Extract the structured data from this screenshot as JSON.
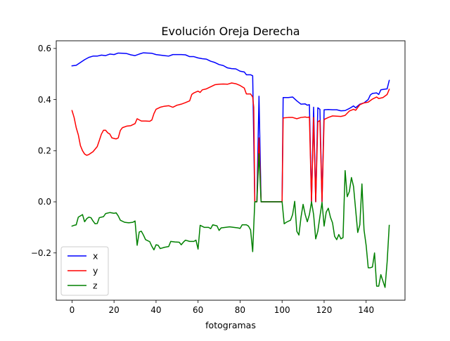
{
  "chart_data": {
    "type": "line",
    "title": "Evolución Oreja Derecha",
    "xlabel": "fotogramas",
    "ylabel": "",
    "xlim": [
      -7.5,
      158.5
    ],
    "ylim": [
      -0.385,
      0.63
    ],
    "x_ticks": [
      0,
      20,
      40,
      60,
      80,
      100,
      120,
      140
    ],
    "y_ticks": [
      -0.2,
      0.0,
      0.2,
      0.4,
      0.6
    ],
    "x_tick_labels": [
      "0",
      "20",
      "40",
      "60",
      "80",
      "100",
      "120",
      "140"
    ],
    "y_tick_labels": [
      "−0.2",
      "0.0",
      "0.2",
      "0.4",
      "0.6"
    ],
    "grid": false,
    "legend_position": "lower-left",
    "series": [
      {
        "name": "x",
        "color": "#0000ff",
        "points": [
          [
            0,
            0.532
          ],
          [
            2,
            0.534
          ],
          [
            4,
            0.545
          ],
          [
            6,
            0.556
          ],
          [
            8,
            0.565
          ],
          [
            10,
            0.57
          ],
          [
            12,
            0.57
          ],
          [
            14,
            0.574
          ],
          [
            16,
            0.572
          ],
          [
            18,
            0.578
          ],
          [
            20,
            0.576
          ],
          [
            22,
            0.582
          ],
          [
            24,
            0.581
          ],
          [
            26,
            0.58
          ],
          [
            28,
            0.575
          ],
          [
            30,
            0.572
          ],
          [
            32,
            0.578
          ],
          [
            34,
            0.583
          ],
          [
            36,
            0.582
          ],
          [
            38,
            0.581
          ],
          [
            40,
            0.576
          ],
          [
            42,
            0.574
          ],
          [
            44,
            0.572
          ],
          [
            46,
            0.57
          ],
          [
            48,
            0.576
          ],
          [
            50,
            0.576
          ],
          [
            52,
            0.576
          ],
          [
            54,
            0.575
          ],
          [
            56,
            0.568
          ],
          [
            58,
            0.568
          ],
          [
            60,
            0.563
          ],
          [
            62,
            0.56
          ],
          [
            64,
            0.558
          ],
          [
            66,
            0.55
          ],
          [
            68,
            0.545
          ],
          [
            70,
            0.537
          ],
          [
            72,
            0.533
          ],
          [
            74,
            0.524
          ],
          [
            76,
            0.521
          ],
          [
            78,
            0.52
          ],
          [
            80,
            0.511
          ],
          [
            82,
            0.508
          ],
          [
            83,
            0.497
          ],
          [
            85,
            0.497
          ],
          [
            86,
            0.493
          ],
          [
            87,
            0.0
          ],
          [
            88,
            0.0
          ],
          [
            89,
            0.413
          ],
          [
            90,
            0.0
          ],
          [
            92,
            0.0
          ],
          [
            94,
            0.0
          ],
          [
            96,
            0.0
          ],
          [
            98,
            0.0
          ],
          [
            100,
            0.0
          ],
          [
            100.5,
            0.408
          ],
          [
            103,
            0.408
          ],
          [
            105,
            0.41
          ],
          [
            107,
            0.395
          ],
          [
            109,
            0.382
          ],
          [
            111,
            0.383
          ],
          [
            112,
            0.378
          ],
          [
            113,
            0.38
          ],
          [
            114,
            0.0
          ],
          [
            115,
            0.37
          ],
          [
            116,
            0.0
          ],
          [
            117,
            0.368
          ],
          [
            118,
            0.362
          ],
          [
            119,
            0.0
          ],
          [
            120,
            0.36
          ],
          [
            122,
            0.361
          ],
          [
            124,
            0.36
          ],
          [
            126,
            0.36
          ],
          [
            128,
            0.356
          ],
          [
            130,
            0.357
          ],
          [
            132,
            0.365
          ],
          [
            134,
            0.375
          ],
          [
            135,
            0.368
          ],
          [
            137,
            0.382
          ],
          [
            139,
            0.387
          ],
          [
            141,
            0.4
          ],
          [
            142,
            0.418
          ],
          [
            143,
            0.424
          ],
          [
            145,
            0.426
          ],
          [
            146,
            0.42
          ],
          [
            147,
            0.438
          ],
          [
            149,
            0.441
          ],
          [
            150,
            0.442
          ],
          [
            151,
            0.475
          ]
        ]
      },
      {
        "name": "y",
        "color": "#ff0000",
        "points": [
          [
            0,
            0.357
          ],
          [
            1,
            0.33
          ],
          [
            2,
            0.29
          ],
          [
            3,
            0.262
          ],
          [
            4,
            0.22
          ],
          [
            5,
            0.2
          ],
          [
            6,
            0.187
          ],
          [
            7,
            0.182
          ],
          [
            8,
            0.185
          ],
          [
            10,
            0.196
          ],
          [
            12,
            0.216
          ],
          [
            13,
            0.24
          ],
          [
            14,
            0.265
          ],
          [
            15,
            0.28
          ],
          [
            16,
            0.28
          ],
          [
            17,
            0.27
          ],
          [
            18,
            0.265
          ],
          [
            19,
            0.25
          ],
          [
            21,
            0.246
          ],
          [
            22,
            0.25
          ],
          [
            23,
            0.279
          ],
          [
            24,
            0.29
          ],
          [
            26,
            0.296
          ],
          [
            28,
            0.298
          ],
          [
            30,
            0.306
          ],
          [
            31,
            0.325
          ],
          [
            33,
            0.316
          ],
          [
            35,
            0.316
          ],
          [
            37,
            0.315
          ],
          [
            38,
            0.32
          ],
          [
            39,
            0.345
          ],
          [
            40,
            0.362
          ],
          [
            42,
            0.37
          ],
          [
            44,
            0.374
          ],
          [
            46,
            0.376
          ],
          [
            48,
            0.37
          ],
          [
            50,
            0.378
          ],
          [
            52,
            0.382
          ],
          [
            54,
            0.388
          ],
          [
            56,
            0.395
          ],
          [
            57,
            0.42
          ],
          [
            58,
            0.426
          ],
          [
            60,
            0.433
          ],
          [
            61,
            0.428
          ],
          [
            62,
            0.438
          ],
          [
            64,
            0.442
          ],
          [
            66,
            0.45
          ],
          [
            68,
            0.458
          ],
          [
            70,
            0.46
          ],
          [
            72,
            0.461
          ],
          [
            74,
            0.46
          ],
          [
            76,
            0.465
          ],
          [
            78,
            0.462
          ],
          [
            80,
            0.455
          ],
          [
            82,
            0.445
          ],
          [
            83,
            0.422
          ],
          [
            85,
            0.422
          ],
          [
            86,
            0.41
          ],
          [
            86.5,
            0.37
          ],
          [
            87,
            0.0
          ],
          [
            88,
            0.0
          ],
          [
            89,
            0.25
          ],
          [
            90,
            0.0
          ],
          [
            92,
            0.0
          ],
          [
            94,
            0.0
          ],
          [
            96,
            0.0
          ],
          [
            98,
            0.0
          ],
          [
            100,
            0.0
          ],
          [
            100.5,
            0.328
          ],
          [
            103,
            0.33
          ],
          [
            105,
            0.33
          ],
          [
            107,
            0.325
          ],
          [
            109,
            0.33
          ],
          [
            111,
            0.332
          ],
          [
            112,
            0.33
          ],
          [
            113,
            0.332
          ],
          [
            114,
            0.0
          ],
          [
            115,
            0.33
          ],
          [
            116,
            0.0
          ],
          [
            117,
            0.313
          ],
          [
            118,
            0.318
          ],
          [
            119,
            0.0
          ],
          [
            120,
            0.322
          ],
          [
            122,
            0.33
          ],
          [
            124,
            0.336
          ],
          [
            126,
            0.335
          ],
          [
            128,
            0.334
          ],
          [
            130,
            0.338
          ],
          [
            132,
            0.355
          ],
          [
            134,
            0.362
          ],
          [
            135,
            0.358
          ],
          [
            137,
            0.38
          ],
          [
            139,
            0.387
          ],
          [
            141,
            0.39
          ],
          [
            143,
            0.402
          ],
          [
            145,
            0.41
          ],
          [
            146,
            0.404
          ],
          [
            148,
            0.408
          ],
          [
            150,
            0.42
          ],
          [
            151,
            0.44
          ]
        ]
      },
      {
        "name": "z",
        "color": "#008000",
        "points": [
          [
            0,
            -0.095
          ],
          [
            1,
            -0.092
          ],
          [
            2,
            -0.09
          ],
          [
            3,
            -0.06
          ],
          [
            5,
            -0.05
          ],
          [
            6,
            -0.078
          ],
          [
            7,
            -0.066
          ],
          [
            8,
            -0.06
          ],
          [
            9,
            -0.062
          ],
          [
            10,
            -0.075
          ],
          [
            11,
            -0.086
          ],
          [
            12,
            -0.085
          ],
          [
            13,
            -0.062
          ],
          [
            15,
            -0.058
          ],
          [
            16,
            -0.046
          ],
          [
            18,
            -0.042
          ],
          [
            20,
            -0.045
          ],
          [
            21,
            -0.043
          ],
          [
            22,
            -0.055
          ],
          [
            23,
            -0.072
          ],
          [
            25,
            -0.08
          ],
          [
            27,
            -0.082
          ],
          [
            29,
            -0.08
          ],
          [
            30,
            -0.075
          ],
          [
            31,
            -0.17
          ],
          [
            32,
            -0.118
          ],
          [
            33,
            -0.115
          ],
          [
            34,
            -0.13
          ],
          [
            35,
            -0.148
          ],
          [
            37,
            -0.156
          ],
          [
            38,
            -0.174
          ],
          [
            39,
            -0.188
          ],
          [
            40,
            -0.168
          ],
          [
            41,
            -0.17
          ],
          [
            42,
            -0.183
          ],
          [
            44,
            -0.178
          ],
          [
            46,
            -0.175
          ],
          [
            47,
            -0.155
          ],
          [
            49,
            -0.157
          ],
          [
            51,
            -0.158
          ],
          [
            52,
            -0.168
          ],
          [
            53,
            -0.158
          ],
          [
            54,
            -0.15
          ],
          [
            56,
            -0.155
          ],
          [
            58,
            -0.155
          ],
          [
            59,
            -0.15
          ],
          [
            60,
            -0.185
          ],
          [
            61,
            -0.092
          ],
          [
            63,
            -0.1
          ],
          [
            65,
            -0.1
          ],
          [
            66,
            -0.105
          ],
          [
            67,
            -0.09
          ],
          [
            69,
            -0.094
          ],
          [
            70,
            -0.112
          ],
          [
            71,
            -0.102
          ],
          [
            73,
            -0.1
          ],
          [
            75,
            -0.098
          ],
          [
            77,
            -0.1
          ],
          [
            79,
            -0.102
          ],
          [
            80,
            -0.104
          ],
          [
            81,
            -0.09
          ],
          [
            83,
            -0.09
          ],
          [
            84,
            -0.095
          ],
          [
            85,
            -0.11
          ],
          [
            86,
            -0.195
          ],
          [
            87,
            0.0
          ],
          [
            88,
            0.0
          ],
          [
            89,
            0.188
          ],
          [
            90,
            0.0
          ],
          [
            92,
            0.0
          ],
          [
            94,
            0.0
          ],
          [
            96,
            0.0
          ],
          [
            98,
            0.0
          ],
          [
            100,
            0.0
          ],
          [
            101,
            -0.086
          ],
          [
            102,
            -0.08
          ],
          [
            104,
            -0.072
          ],
          [
            105,
            -0.05
          ],
          [
            106,
            0.002
          ],
          [
            107,
            -0.115
          ],
          [
            108,
            -0.13
          ],
          [
            109,
            -0.06
          ],
          [
            110,
            -0.01
          ],
          [
            111,
            -0.05
          ],
          [
            112,
            -0.078
          ],
          [
            113,
            -0.05
          ],
          [
            114,
            0.0
          ],
          [
            115,
            -0.05
          ],
          [
            116,
            -0.145
          ],
          [
            117,
            -0.115
          ],
          [
            118,
            -0.058
          ],
          [
            119,
            -0.002
          ],
          [
            120,
            -0.095
          ],
          [
            121,
            -0.04
          ],
          [
            122,
            -0.025
          ],
          [
            123,
            -0.06
          ],
          [
            124,
            -0.082
          ],
          [
            125,
            -0.135
          ],
          [
            126,
            -0.148
          ],
          [
            127,
            -0.128
          ],
          [
            128,
            -0.145
          ],
          [
            129,
            -0.14
          ],
          [
            130,
            0.122
          ],
          [
            131,
            0.02
          ],
          [
            132,
            0.04
          ],
          [
            133,
            0.095
          ],
          [
            134,
            0.06
          ],
          [
            135,
            -0.03
          ],
          [
            136,
            -0.12
          ],
          [
            137,
            -0.09
          ],
          [
            138,
            0.07
          ],
          [
            139,
            -0.11
          ],
          [
            140,
            -0.17
          ],
          [
            141,
            -0.258
          ],
          [
            142,
            -0.258
          ],
          [
            143,
            -0.255
          ],
          [
            144,
            -0.2
          ],
          [
            145,
            -0.33
          ],
          [
            146,
            -0.33
          ],
          [
            147,
            -0.285
          ],
          [
            148,
            -0.31
          ],
          [
            149,
            -0.335
          ],
          [
            150,
            -0.235
          ],
          [
            151,
            -0.092
          ]
        ]
      }
    ]
  }
}
